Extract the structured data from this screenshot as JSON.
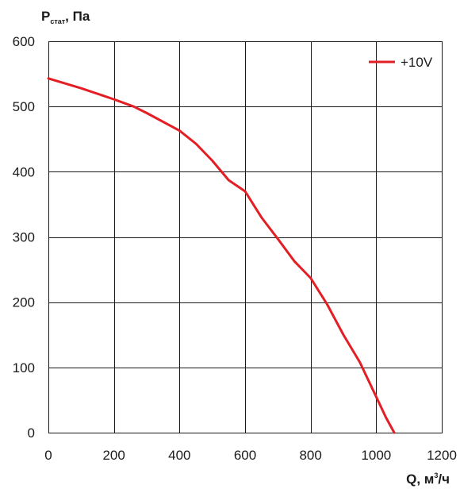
{
  "chart_data": {
    "type": "line",
    "title": "",
    "ylabel": {
      "main": "P",
      "sub": "стат",
      "suffix": ", Па"
    },
    "xlabel": {
      "main": "Q, м",
      "sup": "3",
      "suffix": "/ч"
    },
    "xlim": [
      0,
      1200
    ],
    "ylim": [
      0,
      600
    ],
    "xticks": [
      0,
      200,
      400,
      600,
      800,
      1000,
      1200
    ],
    "yticks": [
      0,
      100,
      200,
      300,
      400,
      500,
      600
    ],
    "grid": true,
    "legend_position": "top-right",
    "series": [
      {
        "name": "+10V",
        "color": "#e31e24",
        "x": [
          0,
          100,
          200,
          260,
          300,
          400,
          450,
          500,
          550,
          600,
          650,
          700,
          750,
          800,
          850,
          900,
          950,
          1000,
          1030,
          1055
        ],
        "y": [
          543,
          528,
          511,
          500,
          490,
          463,
          443,
          417,
          387,
          370,
          330,
          297,
          263,
          237,
          197,
          150,
          108,
          55,
          23,
          0
        ]
      }
    ]
  }
}
